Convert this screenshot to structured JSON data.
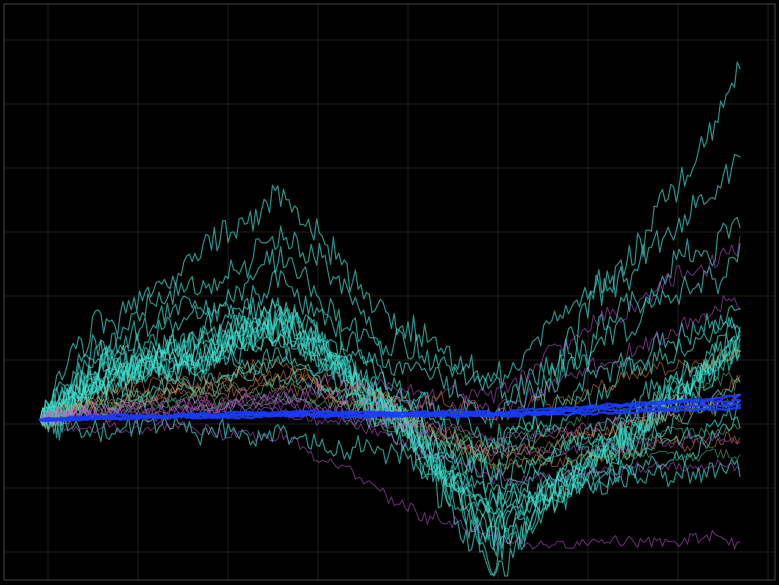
{
  "chart_data": {
    "type": "line",
    "title": "",
    "xlabel": "",
    "ylabel": "",
    "tick_labels_visible": false,
    "legend": "none",
    "grid": true,
    "background": "#000000",
    "xlim": [
      0,
      253
    ],
    "ylim": [
      -0.45,
      0.45
    ],
    "x_count": 254,
    "series_colors": {
      "cyan": "#3fe0d0",
      "orange": "#e0874a",
      "magenta": "#c25ad6",
      "green": "#56c28a",
      "blue": "#1a3cff"
    },
    "series": [
      {
        "color_key": "cyan",
        "seed": 11,
        "final": 0.85,
        "amp": 0.045,
        "bump": 0.3,
        "dip": -0.12,
        "mid": 0.02
      },
      {
        "color_key": "cyan",
        "seed": 12,
        "final": 0.62,
        "amp": 0.04,
        "bump": 0.58,
        "dip": 0.1,
        "mid": 0.25
      },
      {
        "color_key": "cyan",
        "seed": 13,
        "final": 0.46,
        "amp": 0.038,
        "bump": 0.48,
        "dip": 0.05,
        "mid": 0.2
      },
      {
        "color_key": "cyan",
        "seed": 14,
        "final": 0.4,
        "amp": 0.036,
        "bump": 0.4,
        "dip": 0.02,
        "mid": 0.15
      },
      {
        "color_key": "cyan",
        "seed": 15,
        "final": 0.3,
        "amp": 0.034,
        "bump": 0.35,
        "dip": -0.05,
        "mid": 0.1
      },
      {
        "color_key": "cyan",
        "seed": 16,
        "final": 0.25,
        "amp": 0.032,
        "bump": 0.28,
        "dip": -0.1,
        "mid": 0.08
      },
      {
        "color_key": "cyan",
        "seed": 17,
        "final": 0.18,
        "amp": 0.03,
        "bump": 0.24,
        "dip": -0.15,
        "mid": 0.04
      },
      {
        "color_key": "cyan",
        "seed": 18,
        "final": 0.14,
        "amp": 0.03,
        "bump": 0.22,
        "dip": -0.18,
        "mid": 0.03
      },
      {
        "color_key": "cyan",
        "seed": 19,
        "final": 0.1,
        "amp": 0.028,
        "bump": 0.2,
        "dip": -0.2,
        "mid": 0.02
      },
      {
        "color_key": "cyan",
        "seed": 20,
        "final": 0.06,
        "amp": 0.026,
        "bump": 0.18,
        "dip": -0.22,
        "mid": 0.01
      },
      {
        "color_key": "cyan",
        "seed": 21,
        "final": 0.02,
        "amp": 0.024,
        "bump": 0.15,
        "dip": -0.24,
        "mid": 0.0
      },
      {
        "color_key": "cyan",
        "seed": 22,
        "final": -0.03,
        "amp": 0.024,
        "bump": 0.12,
        "dip": -0.26,
        "mid": -0.02
      },
      {
        "color_key": "cyan",
        "seed": 23,
        "final": 0.2,
        "amp": 0.04,
        "bump": 0.26,
        "dip": -0.3,
        "mid": 0.03
      },
      {
        "color_key": "cyan",
        "seed": 24,
        "final": 0.22,
        "amp": 0.042,
        "bump": 0.27,
        "dip": -0.32,
        "mid": 0.03
      },
      {
        "color_key": "cyan",
        "seed": 25,
        "final": 0.19,
        "amp": 0.044,
        "bump": 0.25,
        "dip": -0.34,
        "mid": 0.02
      },
      {
        "color_key": "cyan",
        "seed": 26,
        "final": 0.21,
        "amp": 0.046,
        "bump": 0.26,
        "dip": -0.36,
        "mid": 0.03
      },
      {
        "color_key": "cyan",
        "seed": 27,
        "final": 0.17,
        "amp": 0.04,
        "bump": 0.23,
        "dip": -0.28,
        "mid": 0.02
      },
      {
        "color_key": "cyan",
        "seed": 28,
        "final": 0.16,
        "amp": 0.038,
        "bump": 0.22,
        "dip": -0.26,
        "mid": 0.02
      },
      {
        "color_key": "cyan",
        "seed": 29,
        "final": -0.12,
        "amp": 0.03,
        "bump": -0.05,
        "dip": -0.2,
        "mid": -0.08
      },
      {
        "color_key": "orange",
        "seed": 31,
        "final": 0.08,
        "amp": 0.022,
        "bump": 0.14,
        "dip": -0.1,
        "mid": 0.04
      },
      {
        "color_key": "orange",
        "seed": 32,
        "final": 0.05,
        "amp": 0.02,
        "bump": 0.11,
        "dip": -0.08,
        "mid": 0.02
      },
      {
        "color_key": "orange",
        "seed": 33,
        "final": -0.05,
        "amp": 0.018,
        "bump": 0.09,
        "dip": -0.12,
        "mid": 0.0
      },
      {
        "color_key": "orange",
        "seed": 34,
        "final": 0.18,
        "amp": 0.022,
        "bump": 0.12,
        "dip": 0.02,
        "mid": 0.06
      },
      {
        "color_key": "magenta",
        "seed": 41,
        "final": 0.45,
        "amp": 0.026,
        "bump": 0.06,
        "dip": 0.06,
        "mid": 0.08
      },
      {
        "color_key": "magenta",
        "seed": 42,
        "final": 0.3,
        "amp": 0.024,
        "bump": 0.05,
        "dip": 0.02,
        "mid": 0.05
      },
      {
        "color_key": "magenta",
        "seed": 43,
        "final": 0.04,
        "amp": 0.016,
        "bump": 0.05,
        "dip": -0.05,
        "mid": 0.01
      },
      {
        "color_key": "magenta",
        "seed": 44,
        "final": -0.04,
        "amp": 0.016,
        "bump": 0.04,
        "dip": -0.08,
        "mid": -0.01
      },
      {
        "color_key": "magenta",
        "seed": 45,
        "final": -0.12,
        "amp": 0.016,
        "bump": 0.02,
        "dip": -0.14,
        "mid": -0.04
      },
      {
        "color_key": "magenta",
        "seed": 46,
        "final": -0.3,
        "amp": 0.018,
        "bump": -0.04,
        "dip": -0.3,
        "mid": -0.2
      },
      {
        "color_key": "green",
        "seed": 51,
        "final": 0.12,
        "amp": 0.018,
        "bump": 0.08,
        "dip": -0.06,
        "mid": 0.04
      },
      {
        "color_key": "green",
        "seed": 52,
        "final": -0.02,
        "amp": 0.016,
        "bump": 0.06,
        "dip": -0.08,
        "mid": 0.01
      },
      {
        "color_key": "green",
        "seed": 53,
        "final": -0.08,
        "amp": 0.016,
        "bump": 0.05,
        "dip": -0.1,
        "mid": -0.02
      },
      {
        "color_key": "blue",
        "seed": 61,
        "final": 0.06,
        "amp": 0.003,
        "bump": 0.02,
        "dip": 0.02,
        "mid": 0.02
      },
      {
        "color_key": "blue",
        "seed": 62,
        "final": 0.05,
        "amp": 0.003,
        "bump": 0.015,
        "dip": 0.015,
        "mid": 0.015
      },
      {
        "color_key": "blue",
        "seed": 63,
        "final": 0.04,
        "amp": 0.003,
        "bump": 0.012,
        "dip": 0.012,
        "mid": 0.012
      },
      {
        "color_key": "blue",
        "seed": 64,
        "final": 0.03,
        "amp": 0.003,
        "bump": 0.01,
        "dip": 0.01,
        "mid": 0.01
      }
    ]
  }
}
